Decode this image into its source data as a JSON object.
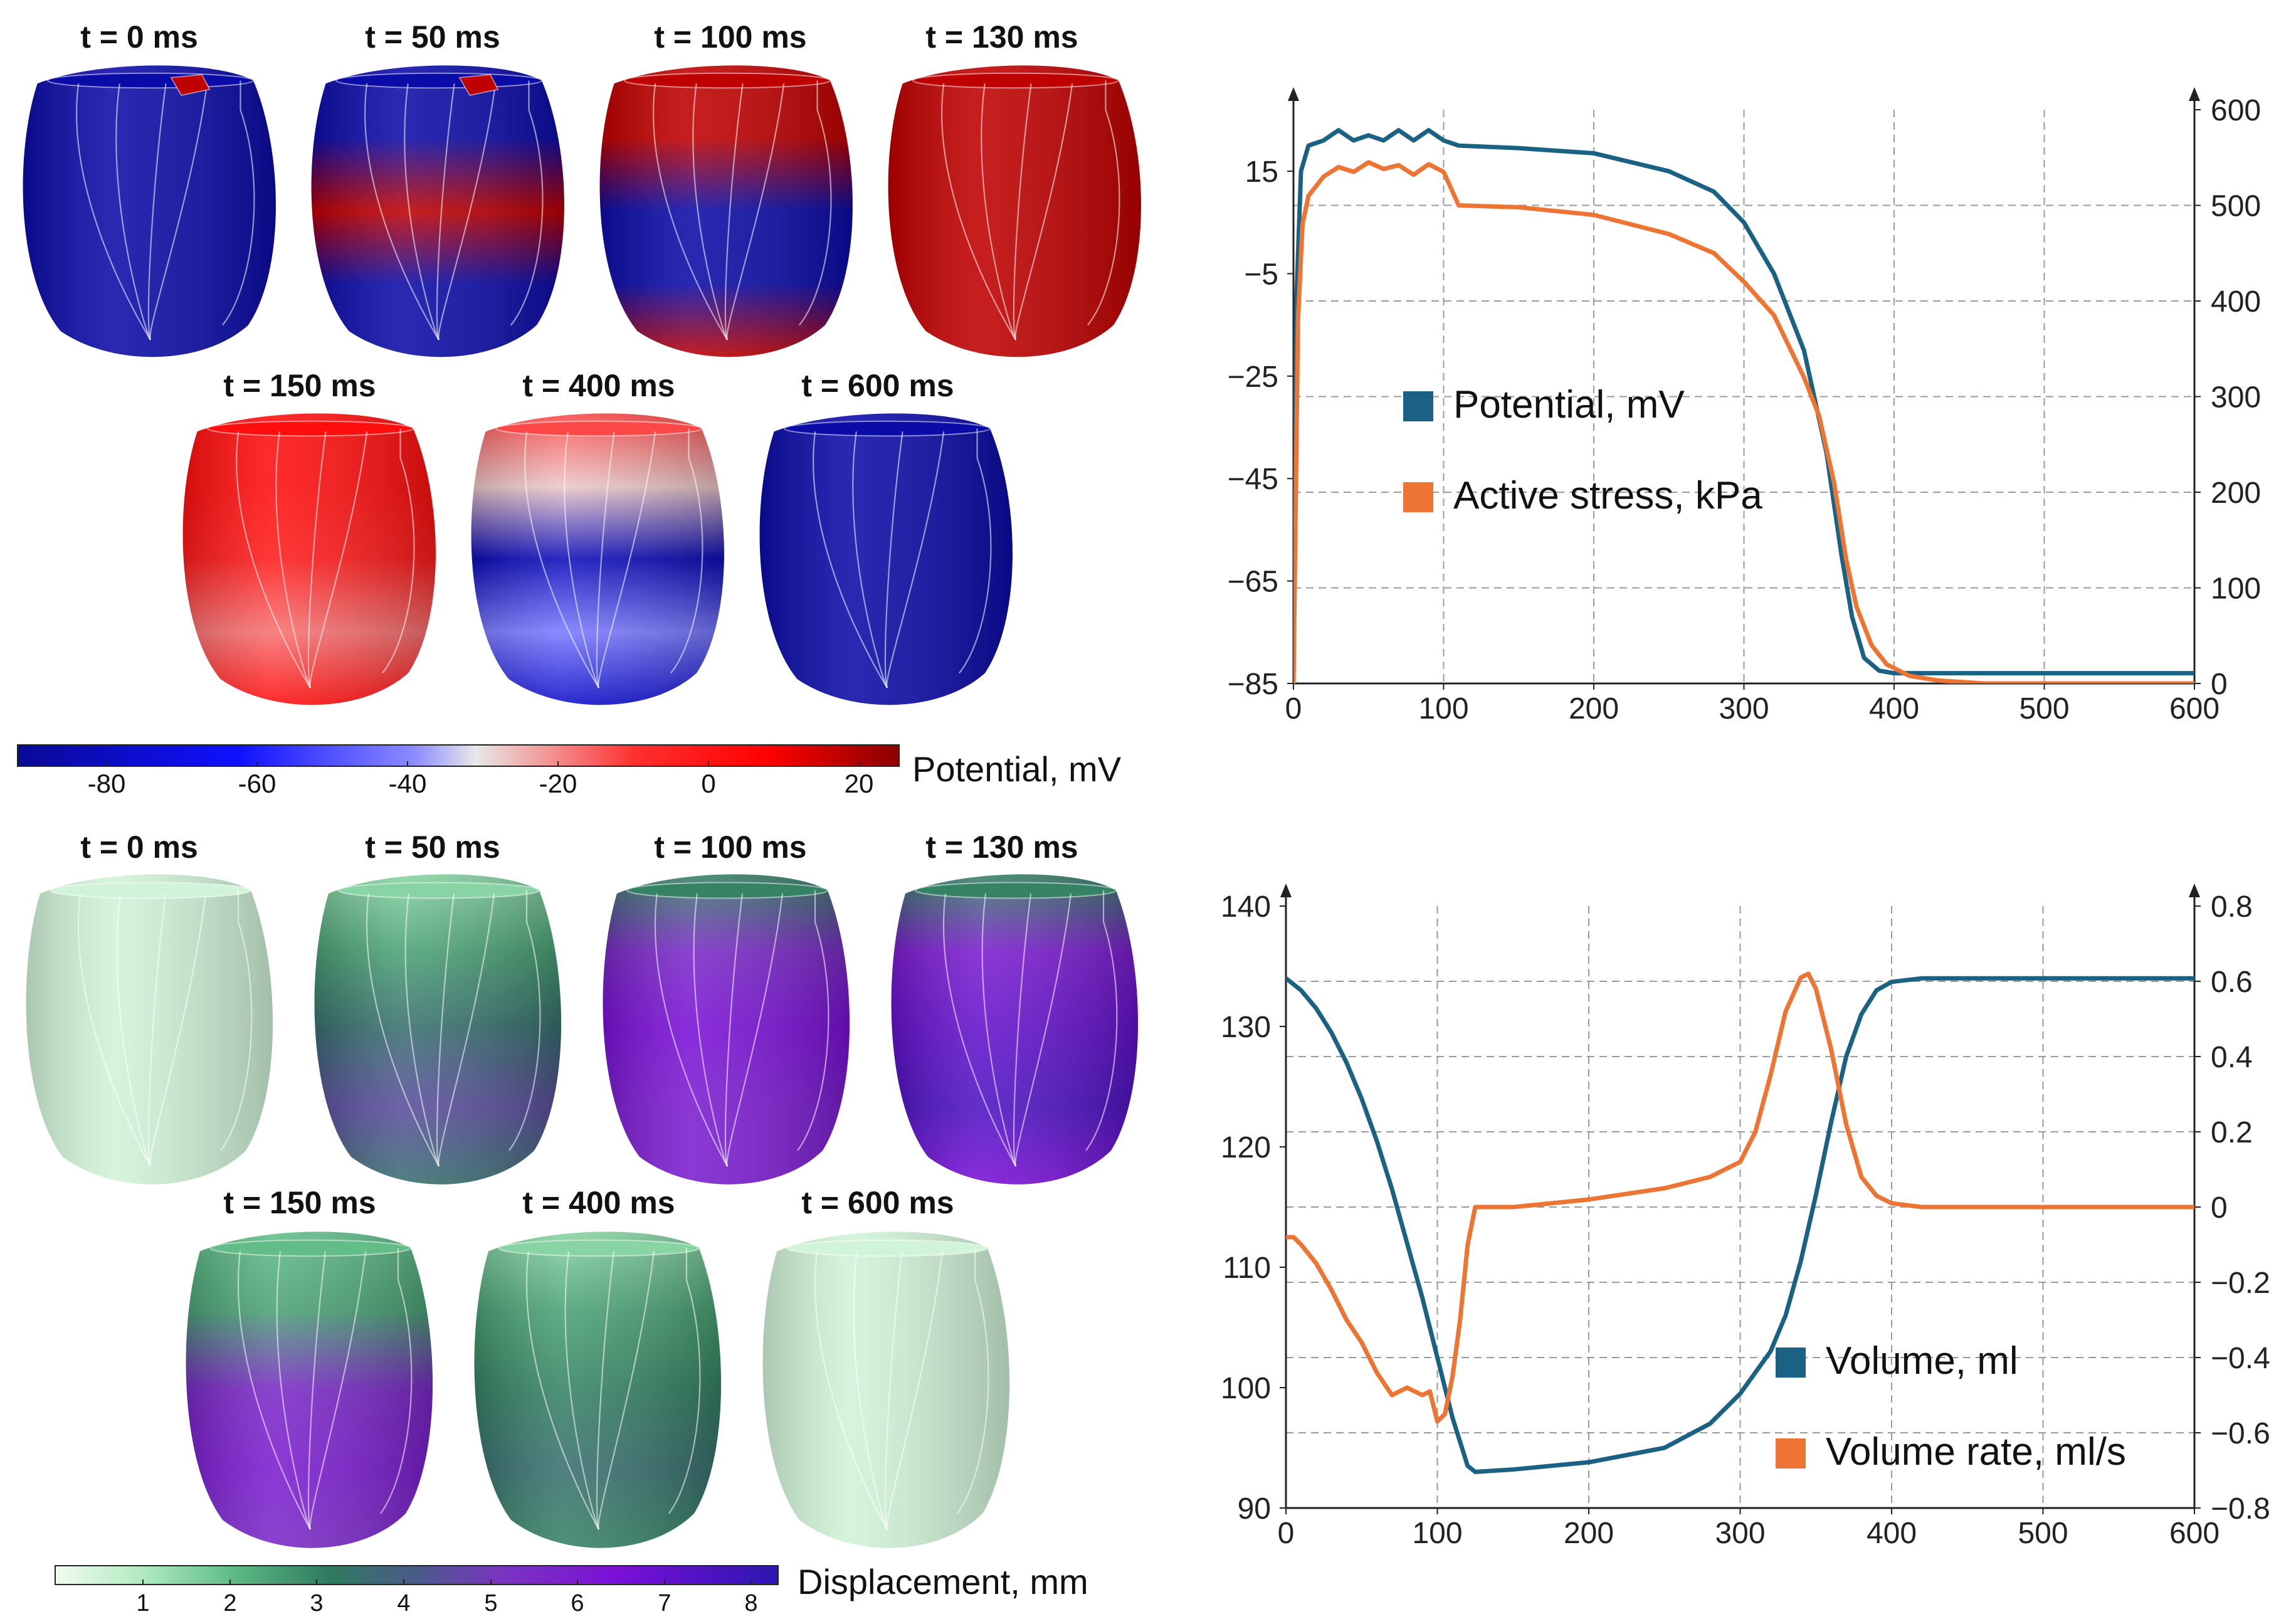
{
  "colors": {
    "potential_line": "#1b6184",
    "stress_line": "#ee7434",
    "volume_line": "#1b6184",
    "rate_line": "#ee7434",
    "axis": "#222222",
    "grid": "#9a9a9a",
    "heart_outline": "#d9d9ef"
  },
  "potential_panel": {
    "frames": [
      {
        "label": "t = 0 ms",
        "shading": [
          -85,
          -85,
          -85,
          -85,
          -85
        ],
        "hotspot": 20
      },
      {
        "label": "t = 50 ms",
        "shading": [
          -85,
          -85,
          20,
          -85,
          -85
        ],
        "hotspot": 20
      },
      {
        "label": "t = 100 ms",
        "shading": [
          20,
          20,
          -85,
          -85,
          20
        ],
        "hotspot": null
      },
      {
        "label": "t = 130 ms",
        "shading": [
          20,
          20,
          20,
          20,
          20
        ],
        "hotspot": null
      },
      {
        "label": "t = 150 ms",
        "shading": [
          5,
          5,
          0,
          -15,
          5
        ],
        "hotspot": null
      },
      {
        "label": "t = 400 ms",
        "shading": [
          -10,
          -25,
          -80,
          -40,
          -75
        ],
        "hotspot": null
      },
      {
        "label": "t = 600 ms",
        "shading": [
          -85,
          -85,
          -85,
          -85,
          -85
        ],
        "hotspot": null
      }
    ],
    "colorbar": {
      "title": "Potential, mV",
      "ticks": [
        "-80",
        "-60",
        "-40",
        "-20",
        "0",
        "20"
      ],
      "range": [
        -90,
        28
      ]
    }
  },
  "displacement_panel": {
    "frames": [
      {
        "label": "t = 0 ms",
        "shading": [
          0.5,
          0.5,
          0.5,
          0.5,
          0.5
        ]
      },
      {
        "label": "t = 50 ms",
        "shading": [
          1.5,
          2.5,
          3.5,
          4.5,
          3.5
        ]
      },
      {
        "label": "t = 100 ms",
        "shading": [
          3.0,
          5.5,
          6.5,
          6.0,
          6.0
        ]
      },
      {
        "label": "t = 130 ms",
        "shading": [
          3.0,
          6.0,
          7.0,
          7.5,
          6.5
        ]
      },
      {
        "label": "t = 150 ms",
        "shading": [
          2.0,
          2.5,
          5.5,
          6.0,
          5.5
        ]
      },
      {
        "label": "t = 400 ms",
        "shading": [
          1.5,
          2.5,
          3.0,
          3.5,
          3.0
        ]
      },
      {
        "label": "t = 600 ms",
        "shading": [
          0.5,
          0.5,
          0.5,
          0.5,
          0.5
        ]
      }
    ],
    "colorbar": {
      "title": "Displacement, mm",
      "ticks": [
        "1",
        "2",
        "3",
        "4",
        "5",
        "6",
        "7",
        "8"
      ],
      "range": [
        0,
        8.3
      ]
    }
  },
  "chart_data": [
    {
      "type": "line",
      "title": "",
      "xlabel": "",
      "ylabel": "",
      "y2label": "",
      "xlim": [
        0,
        600
      ],
      "ylim": [
        -85,
        27
      ],
      "y2lim": [
        0,
        600
      ],
      "x_ticks": [
        "0",
        "100",
        "200",
        "300",
        "400",
        "500",
        "600"
      ],
      "y_ticks": [
        "15",
        "−5",
        "−25",
        "−45",
        "−65",
        "−85"
      ],
      "y_tick_values": [
        15,
        -5,
        -25,
        -45,
        -65,
        -85
      ],
      "y2_ticks": [
        "0",
        "100",
        "200",
        "300",
        "400",
        "500",
        "600"
      ],
      "y2_tick_values": [
        0,
        100,
        200,
        300,
        400,
        500,
        600
      ],
      "grid": true,
      "legend_position": "center-left",
      "series": [
        {
          "name": "Potential, mV",
          "axis": "left",
          "x": [
            0,
            2,
            5,
            10,
            20,
            30,
            40,
            50,
            60,
            70,
            80,
            90,
            100,
            110,
            150,
            200,
            250,
            280,
            300,
            320,
            340,
            355,
            365,
            372,
            380,
            390,
            400,
            420,
            450,
            500,
            600
          ],
          "y": [
            -83,
            -10,
            15,
            20,
            21,
            23,
            21,
            22,
            21,
            23,
            21,
            23,
            21,
            20,
            19.5,
            18.5,
            15,
            11,
            5,
            -5,
            -20,
            -40,
            -60,
            -72,
            -80,
            -82.5,
            -83,
            -83,
            -83,
            -83,
            -83
          ]
        },
        {
          "name": "Active stress, kPa",
          "axis": "right",
          "x": [
            0,
            3,
            6,
            10,
            20,
            30,
            40,
            50,
            60,
            70,
            80,
            90,
            100,
            110,
            150,
            200,
            250,
            280,
            300,
            320,
            340,
            350,
            360,
            368,
            375,
            385,
            395,
            410,
            430,
            460,
            500,
            600
          ],
          "y": [
            0,
            380,
            480,
            510,
            530,
            540,
            535,
            545,
            538,
            542,
            532,
            543,
            535,
            500,
            498,
            490,
            470,
            450,
            420,
            385,
            320,
            280,
            210,
            130,
            80,
            40,
            20,
            8,
            3,
            0,
            0,
            0
          ]
        }
      ]
    },
    {
      "type": "line",
      "title": "",
      "xlabel": "",
      "ylabel": "",
      "y2label": "",
      "xlim": [
        0,
        600
      ],
      "ylim": [
        90,
        140
      ],
      "y2lim": [
        -0.8,
        0.8
      ],
      "x_ticks": [
        "0",
        "100",
        "200",
        "300",
        "400",
        "500",
        "600"
      ],
      "y_ticks": [
        "140",
        "130",
        "120",
        "110",
        "100",
        "90"
      ],
      "y_tick_values": [
        140,
        130,
        120,
        110,
        100,
        90
      ],
      "y2_ticks": [
        "0.8",
        "0.6",
        "0.4",
        "0.2",
        "0",
        "−0.2",
        "−0.4",
        "−0.6",
        "−0.8"
      ],
      "y2_tick_values": [
        0.8,
        0.6,
        0.4,
        0.2,
        0,
        -0.2,
        -0.4,
        -0.6,
        -0.8
      ],
      "grid": true,
      "legend_position": "bottom-right",
      "series": [
        {
          "name": "Volume, ml",
          "axis": "left",
          "x": [
            0,
            10,
            20,
            30,
            40,
            50,
            60,
            70,
            80,
            90,
            100,
            110,
            120,
            125,
            150,
            200,
            250,
            280,
            300,
            320,
            330,
            340,
            350,
            360,
            370,
            380,
            390,
            400,
            420,
            450,
            500,
            600
          ],
          "y": [
            134,
            133,
            131.5,
            129.5,
            127,
            124,
            120.5,
            116.5,
            112,
            107.5,
            102.5,
            97.5,
            93.5,
            93,
            93.2,
            93.8,
            95,
            97,
            99.5,
            103,
            106,
            110.5,
            116,
            122,
            127.5,
            131,
            133,
            133.7,
            134,
            134,
            134,
            134
          ]
        },
        {
          "name": "Volume rate, ml/s",
          "axis": "right",
          "x": [
            0,
            5,
            10,
            20,
            30,
            40,
            50,
            60,
            70,
            80,
            90,
            95,
            100,
            105,
            110,
            115,
            120,
            125,
            130,
            150,
            200,
            250,
            280,
            300,
            310,
            320,
            330,
            340,
            345,
            350,
            360,
            370,
            380,
            390,
            400,
            420,
            450,
            500,
            600
          ],
          "y": [
            -0.08,
            -0.08,
            -0.1,
            -0.15,
            -0.22,
            -0.3,
            -0.36,
            -0.44,
            -0.5,
            -0.48,
            -0.5,
            -0.49,
            -0.57,
            -0.55,
            -0.45,
            -0.3,
            -0.1,
            0.0,
            0.0,
            0.0,
            0.02,
            0.05,
            0.08,
            0.12,
            0.2,
            0.35,
            0.52,
            0.61,
            0.62,
            0.58,
            0.42,
            0.22,
            0.08,
            0.03,
            0.01,
            0.0,
            0.0,
            0.0,
            0.0
          ]
        }
      ]
    }
  ]
}
